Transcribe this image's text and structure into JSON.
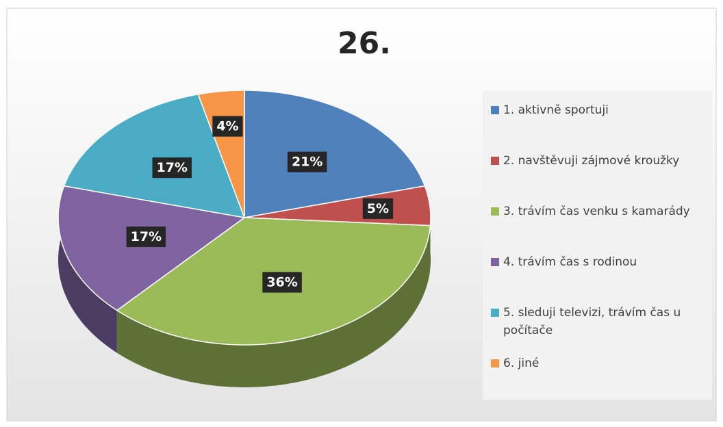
{
  "chart_data": {
    "type": "pie",
    "title": "26.",
    "categories": [
      "1. aktivně sportuji",
      "2. navštěvuji zájmové kroužky",
      "3. trávím čas venku s kamarády",
      "4. trávím čas s rodinou",
      "5. sleduji televizi, trávím čas u počítače",
      "6. jiné"
    ],
    "values": [
      21,
      5,
      36,
      17,
      17,
      4
    ],
    "value_labels": [
      "21%",
      "5%",
      "36%",
      "17%",
      "17%",
      "4%"
    ],
    "colors": [
      "#4f81bd",
      "#c0504d",
      "#9bbb59",
      "#8064a2",
      "#4bacc6",
      "#f79646"
    ],
    "legend": "right"
  }
}
